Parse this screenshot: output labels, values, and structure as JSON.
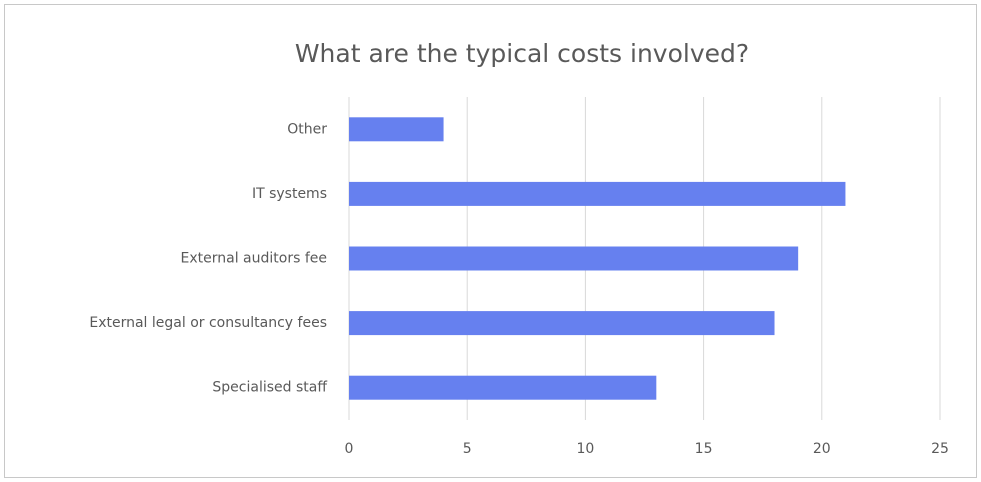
{
  "chart_data": {
    "type": "barh",
    "title": "What are the typical costs involved?",
    "categories": [
      "Other",
      "IT systems",
      "External auditors fee",
      "External legal or consultancy fees",
      "Specialised staff"
    ],
    "values": [
      4,
      21,
      19,
      18,
      13
    ],
    "color": "#6680ef",
    "xlim": [
      0,
      25
    ],
    "xticks": [
      0,
      5,
      10,
      15,
      20,
      25
    ],
    "grid": true
  }
}
